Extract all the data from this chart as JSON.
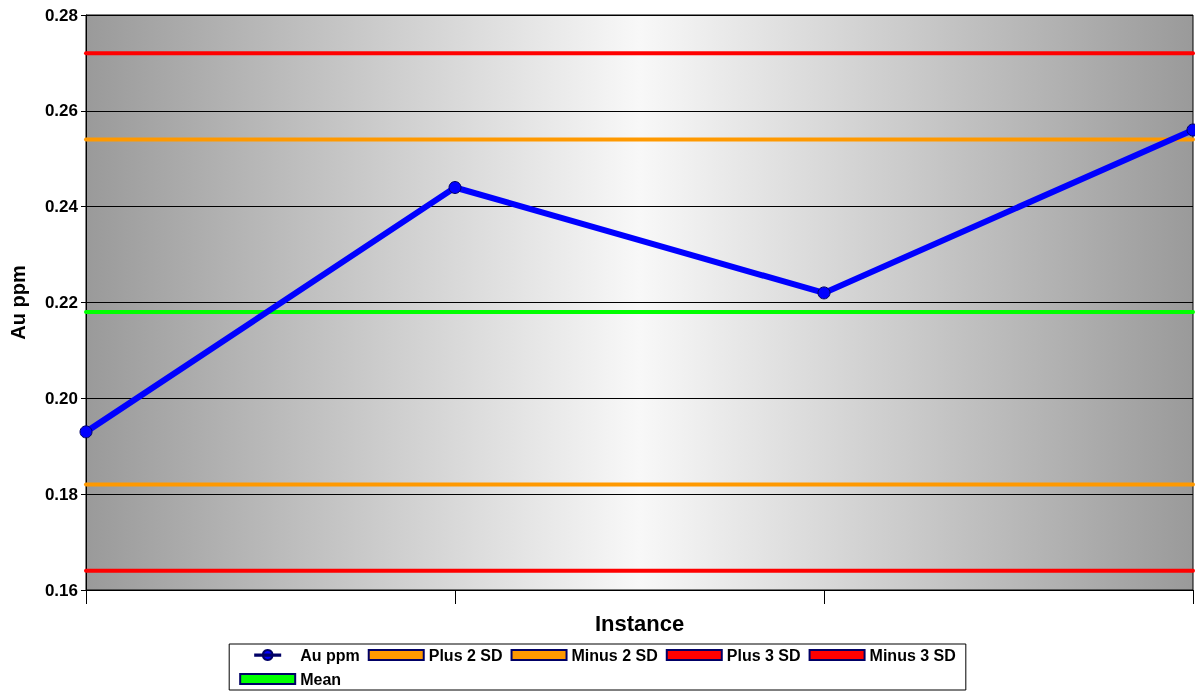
{
  "chart_data": {
    "type": "line",
    "xlabel": "Instance",
    "ylabel": "Au ppm",
    "categories": [
      null,
      null,
      null,
      null
    ],
    "series": [
      {
        "name": "Au ppm",
        "color": "#0000ff",
        "values": [
          0.193,
          0.244,
          0.222,
          0.256
        ],
        "marker": "circle"
      },
      {
        "name": "Plus 2 SD",
        "color": "#ff9900",
        "values": [
          0.254,
          0.254,
          0.254,
          0.254
        ],
        "marker": "none"
      },
      {
        "name": "Minus 2 SD",
        "color": "#ff9900",
        "values": [
          0.182,
          0.182,
          0.182,
          0.182
        ],
        "marker": "none"
      },
      {
        "name": "Plus 3 SD",
        "color": "#ff0000",
        "values": [
          0.272,
          0.272,
          0.272,
          0.272
        ],
        "marker": "none"
      },
      {
        "name": "Minus 3 SD",
        "color": "#ff0000",
        "values": [
          0.164,
          0.164,
          0.164,
          0.164
        ],
        "marker": "none"
      },
      {
        "name": "Mean",
        "color": "#00ff00",
        "values": [
          0.218,
          0.218,
          0.218,
          0.218
        ],
        "marker": "none"
      }
    ],
    "ylim": [
      0.16,
      0.28
    ],
    "yticks": [
      0.16,
      0.18,
      {
        "value": 0.2,
        "label": "0.20"
      },
      0.22,
      0.24,
      0.26,
      0.28
    ],
    "grid": "y",
    "legend": "bottom",
    "tick_labels": "y",
    "line_style": "solid"
  }
}
